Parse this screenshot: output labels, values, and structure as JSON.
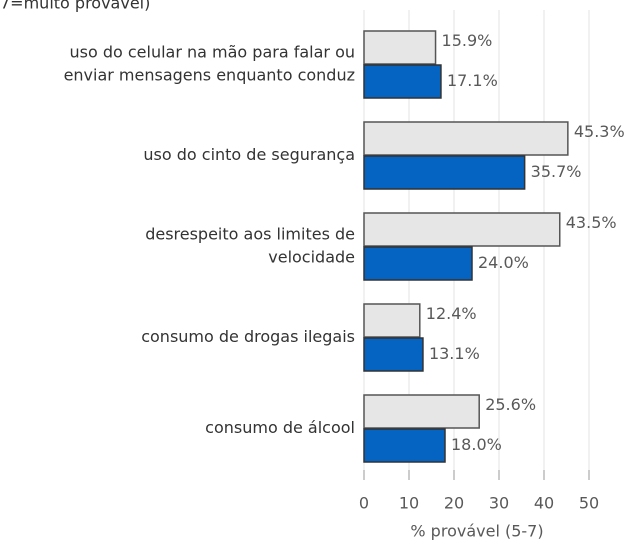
{
  "chart_data": {
    "type": "bar",
    "orientation": "horizontal",
    "title": "7=muito provável)",
    "categories": [
      [
        "uso do celular na mão para falar ou",
        "enviar mensagens enquanto conduz"
      ],
      [
        "uso do cinto de segurança"
      ],
      [
        "desrespeito aos limites de",
        "velocidade"
      ],
      [
        "consumo de drogas ilegais"
      ],
      [
        "consumo de álcool"
      ]
    ],
    "series": [
      {
        "color": "#e6e6e6",
        "values": [
          15.9,
          45.3,
          43.5,
          12.4,
          25.6
        ],
        "value_labels": [
          "15.9%",
          "45.3%",
          "43.5%",
          "12.4%",
          "25.6%"
        ]
      },
      {
        "color": "#0563c1",
        "values": [
          17.1,
          35.7,
          24.0,
          13.1,
          18.0
        ],
        "value_labels": [
          "17.1%",
          "35.7%",
          "24.0%",
          "13.1%",
          "18.0%"
        ]
      }
    ],
    "x_label": "% provável (5-7)",
    "xlim": [
      0,
      50
    ],
    "xticks": [
      0,
      10,
      20,
      30,
      40,
      50
    ],
    "grid": true
  }
}
